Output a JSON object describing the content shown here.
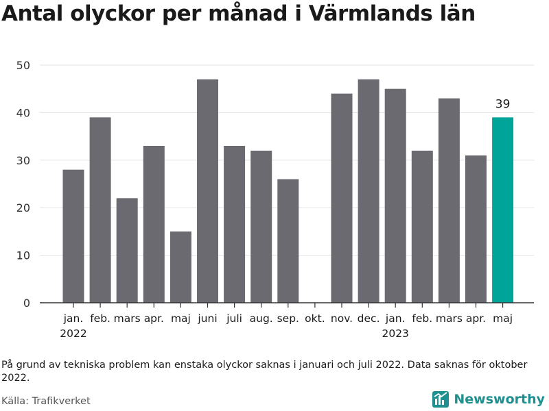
{
  "title": "Antal olyckor per månad i Värmlands län",
  "note": "På grund av tekniska problem kan enstaka olyckor saknas i januari och juli 2022. Data saknas för oktober 2022.",
  "source": "Källa: Trafikverket",
  "brand": "Newsworthy",
  "colors": {
    "bar": "#6b6a70",
    "highlight": "#00a499",
    "grid": "#e3e3e3",
    "axis": "#333333",
    "brand": "#1f8f8f"
  },
  "chart_data": {
    "type": "bar",
    "categories": [
      "jan.",
      "feb.",
      "mars",
      "apr.",
      "maj",
      "juni",
      "juli",
      "aug.",
      "sep.",
      "okt.",
      "nov.",
      "dec.",
      "jan.",
      "feb.",
      "mars",
      "apr.",
      "maj"
    ],
    "year_labels": [
      {
        "index": 0,
        "label": "2022"
      },
      {
        "index": 12,
        "label": "2023"
      }
    ],
    "values": [
      28,
      39,
      22,
      33,
      15,
      47,
      33,
      32,
      26,
      null,
      44,
      47,
      45,
      32,
      43,
      31,
      39
    ],
    "highlight_index": 16,
    "highlight_label": "39",
    "ylim": [
      0,
      50
    ],
    "yticks": [
      0,
      10,
      20,
      30,
      40,
      50
    ],
    "grid": true
  }
}
